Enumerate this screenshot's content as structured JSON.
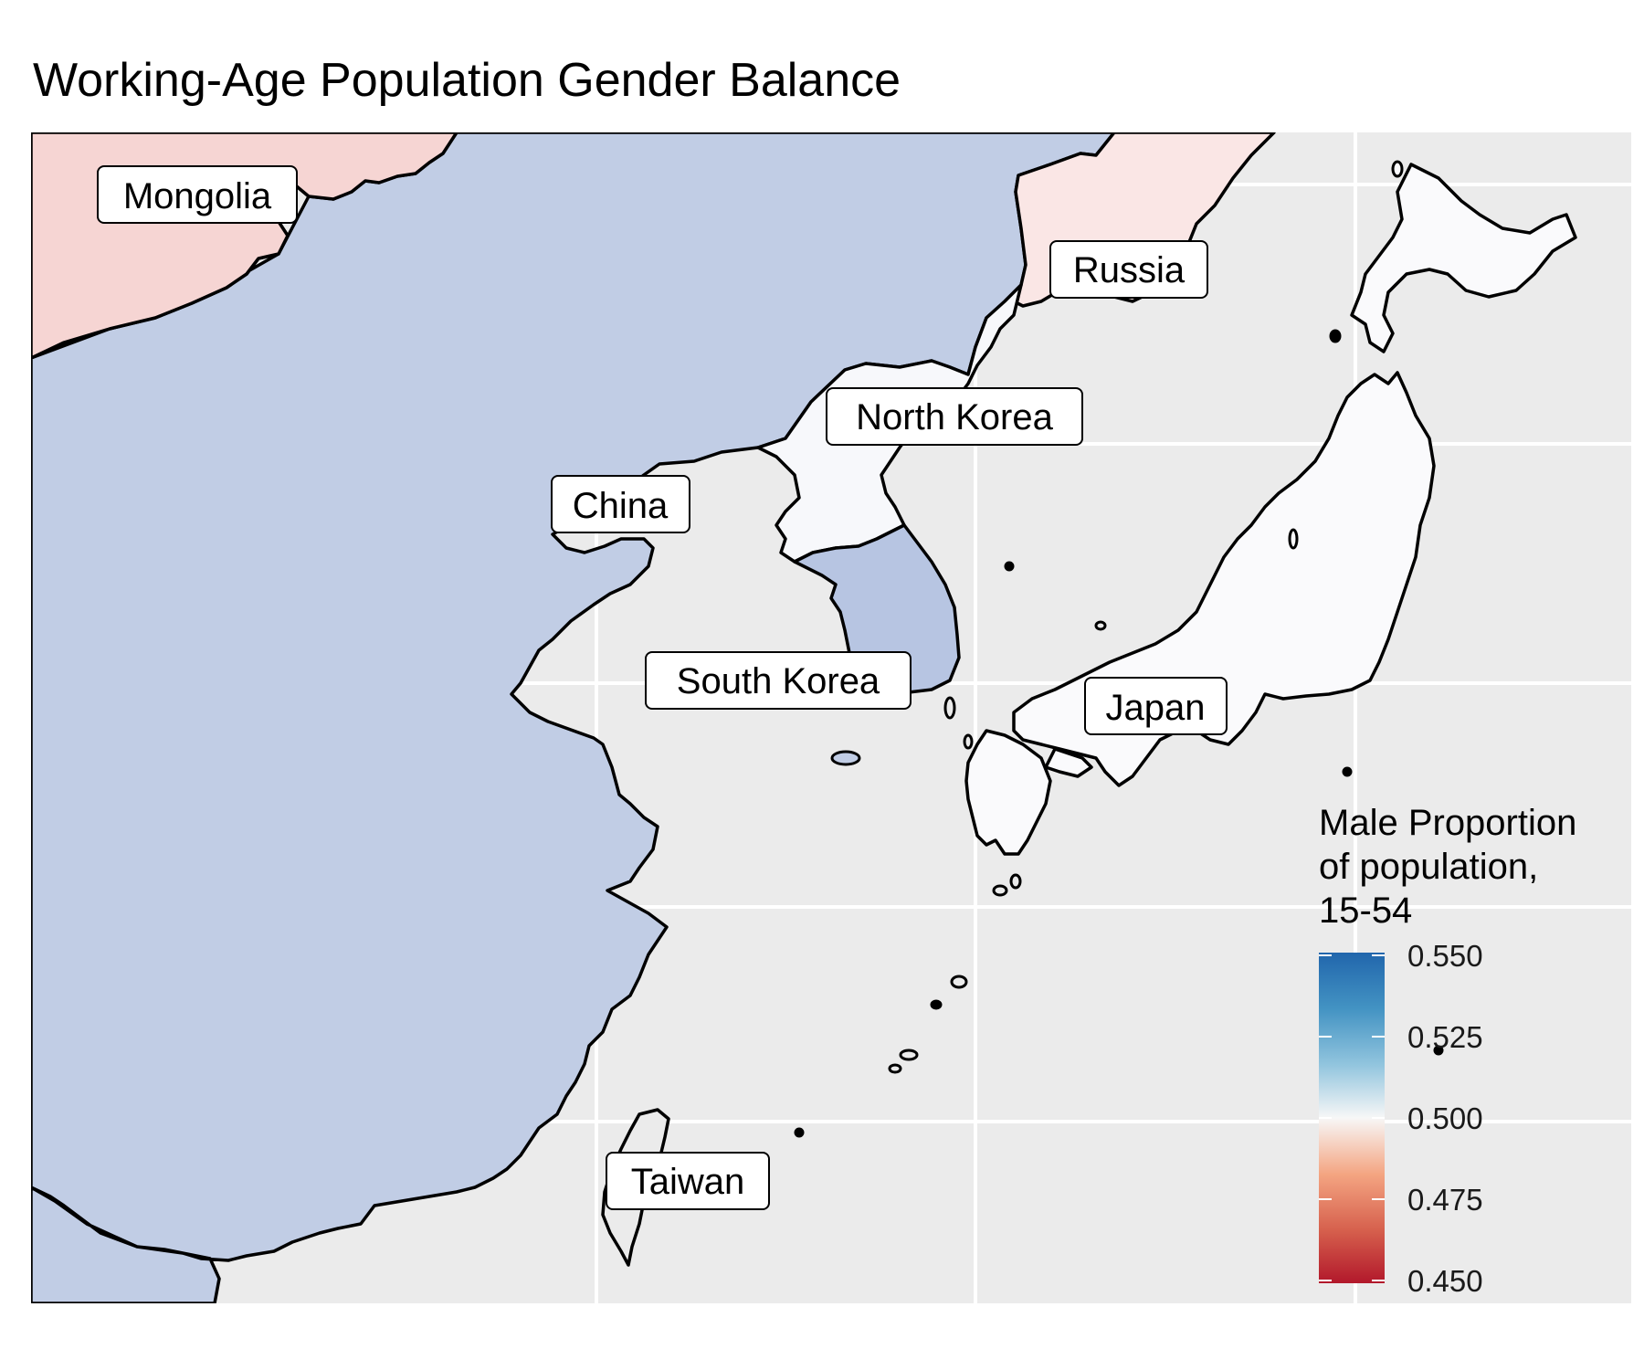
{
  "title": "Working-Age Population Gender Balance",
  "colors": {
    "panel_bg": "#ebebeb",
    "grid": "#ffffff",
    "border": "#000000",
    "china": "#c1cde5",
    "south_korea": "#b7c5e2",
    "mongolia": "#f6d5d3",
    "russia": "#fae6e5",
    "north_korea": "#f7f8fb",
    "japan": "#fafafc"
  },
  "labels": {
    "mongolia": "Mongolia",
    "russia": "Russia",
    "north_korea": "North Korea",
    "china": "China",
    "south_korea": "South Korea",
    "japan": "Japan",
    "taiwan": "Taiwan"
  },
  "chart_data": {
    "type": "choropleth map",
    "title": "Working-Age Population Gender Balance",
    "legend": {
      "title_lines": [
        "Male Proportion",
        "of population,",
        "15-54"
      ],
      "ticks": [
        "0.550",
        "0.525",
        "0.500",
        "0.475",
        "0.450"
      ],
      "range": [
        0.45,
        0.55
      ],
      "palette": [
        "#b2182b",
        "#ef8a62",
        "#fddbc7",
        "#f7f7f7",
        "#d1e5f0",
        "#67a9cf",
        "#2166ac"
      ],
      "placement": "bottom-right"
    },
    "regions": [
      {
        "name": "Mongolia",
        "fill": "#f6d5d3"
      },
      {
        "name": "Russia",
        "fill": "#fae6e5"
      },
      {
        "name": "North Korea",
        "fill": "#f7f8fb"
      },
      {
        "name": "China",
        "fill": "#c1cde5"
      },
      {
        "name": "South Korea",
        "fill": "#b7c5e2"
      },
      {
        "name": "Japan",
        "fill": "#fafafc"
      },
      {
        "name": "Taiwan",
        "fill": "#ebebeb"
      }
    ]
  }
}
